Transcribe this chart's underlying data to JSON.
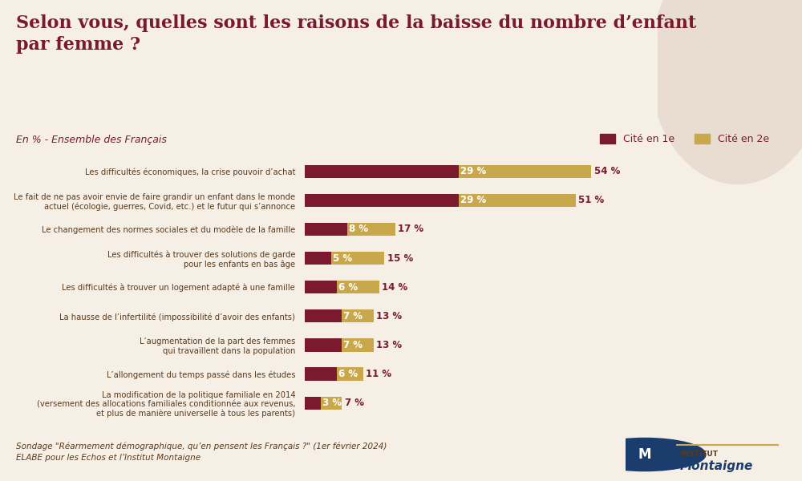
{
  "title": "Selon vous, quelles sont les raisons de la baisse du nombre d’enfant\npar femme ?",
  "subtitle": "En % - Ensemble des Français",
  "legend_label1": "Cité en 1e",
  "legend_label2": "Cité en 2e",
  "color1": "#7B1A2E",
  "color2": "#C9A84C",
  "background_color": "#F5EFE6",
  "text_color": "#7B1A2E",
  "categories": [
    "Les difficultés économiques, la crise pouvoir d’achat",
    "Le fait de ne pas avoir envie de faire grandir un enfant dans le monde\nactuel (écologie, guerres, Covid, etc.) et le futur qui s’annonce",
    "Le changement des normes sociales et du modèle de la famille",
    "Les difficultés à trouver des solutions de garde\npour les enfants en bas âge",
    "Les difficultés à trouver un logement adapté à une famille",
    "La hausse de l’infertilité (impossibilité d’avoir des enfants)",
    "L’augmentation de la part des femmes\nqui travaillent dans la population",
    "L’allongement du temps passé dans les études",
    "La modification de la politique familiale en 2014\n(versement des allocations familiales conditionnée aux revenus,\net plus de manière universelle à tous les parents)"
  ],
  "values1": [
    29,
    29,
    8,
    5,
    6,
    7,
    7,
    6,
    3
  ],
  "values2": [
    54,
    51,
    17,
    15,
    14,
    13,
    13,
    11,
    7
  ],
  "footer1": "Sondage \"Réarmement démographique, qu’en pensent les Français ?\" (1er février 2024)",
  "footer2": "ELABE pour les Echos et l’Institut Montaigne"
}
